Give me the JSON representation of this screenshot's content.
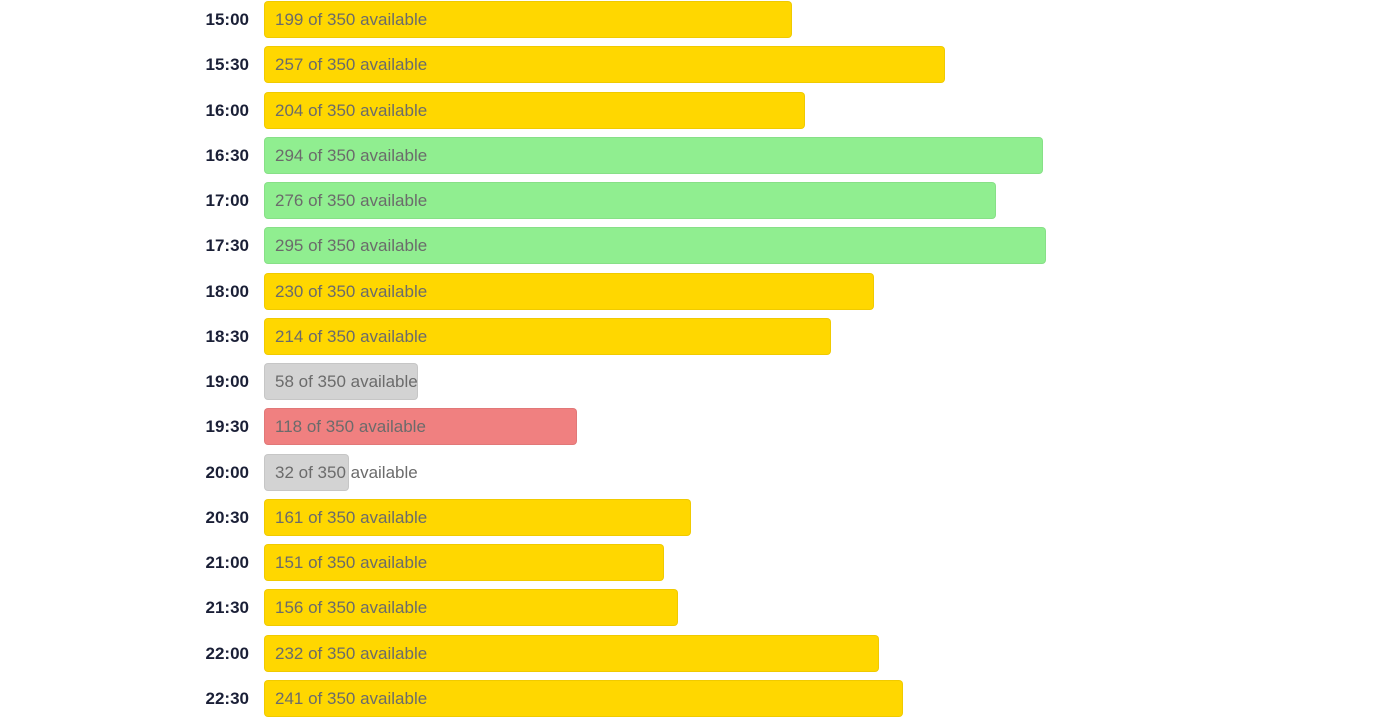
{
  "colors": {
    "high": "#90ee90",
    "medium": "#ffd700",
    "low": "#f08080",
    "critical": "#d3d3d3"
  },
  "chart_data": {
    "type": "bar",
    "orientation": "horizontal",
    "xlim": [
      0,
      350
    ],
    "grid": false,
    "categories": [
      "15:00",
      "15:30",
      "16:00",
      "16:30",
      "17:00",
      "17:30",
      "18:00",
      "18:30",
      "19:00",
      "19:30",
      "20:00",
      "20:30",
      "21:00",
      "21:30",
      "22:00",
      "22:30"
    ],
    "capacity": 350,
    "rows": [
      {
        "time": "15:00",
        "value": 199,
        "label": "199 of 350 available",
        "level": "medium"
      },
      {
        "time": "15:30",
        "value": 257,
        "label": "257 of 350 available",
        "level": "medium"
      },
      {
        "time": "16:00",
        "value": 204,
        "label": "204 of 350 available",
        "level": "medium"
      },
      {
        "time": "16:30",
        "value": 294,
        "label": "294 of 350 available",
        "level": "high"
      },
      {
        "time": "17:00",
        "value": 276,
        "label": "276 of 350 available",
        "level": "high"
      },
      {
        "time": "17:30",
        "value": 295,
        "label": "295 of 350 available",
        "level": "high"
      },
      {
        "time": "18:00",
        "value": 230,
        "label": "230 of 350 available",
        "level": "medium"
      },
      {
        "time": "18:30",
        "value": 214,
        "label": "214 of 350 available",
        "level": "medium"
      },
      {
        "time": "19:00",
        "value": 58,
        "label": "58 of 350 available",
        "level": "critical"
      },
      {
        "time": "19:30",
        "value": 118,
        "label": "118 of 350 available",
        "level": "low"
      },
      {
        "time": "20:00",
        "value": 32,
        "label": "32 of 350 available",
        "level": "critical"
      },
      {
        "time": "20:30",
        "value": 161,
        "label": "161 of 350 available",
        "level": "medium"
      },
      {
        "time": "21:00",
        "value": 151,
        "label": "151 of 350 available",
        "level": "medium"
      },
      {
        "time": "21:30",
        "value": 156,
        "label": "156 of 350 available",
        "level": "medium"
      },
      {
        "time": "22:00",
        "value": 232,
        "label": "232 of 350 available",
        "level": "medium"
      },
      {
        "time": "22:30",
        "value": 241,
        "label": "241 of 350 available",
        "level": "medium"
      }
    ]
  }
}
